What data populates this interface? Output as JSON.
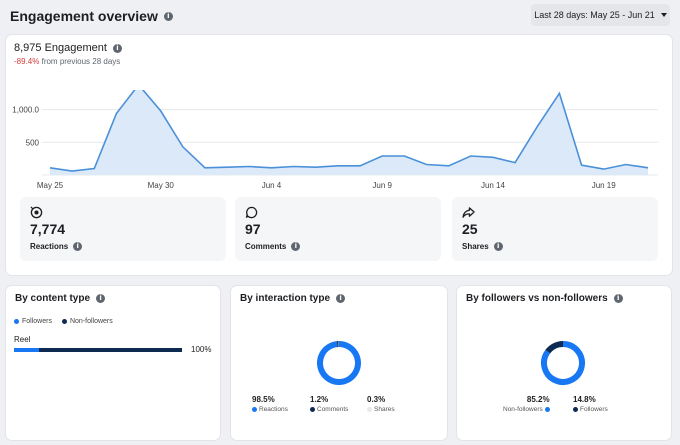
{
  "header": {
    "title": "Engagement overview",
    "date_range": "Last 28 days: May 25 - Jun 21"
  },
  "overview": {
    "total": "8,975 Engagement",
    "change_pct": "-89.4%",
    "change_text": "from previous 28 days"
  },
  "chart_data": {
    "type": "area",
    "x_labels": [
      "May 25",
      "May 30",
      "Jun 4",
      "Jun 9",
      "Jun 14",
      "Jun 19"
    ],
    "y_ticks": [
      "500",
      "1,000.0"
    ],
    "ylim": [
      0,
      1300
    ],
    "values": [
      110,
      60,
      100,
      940,
      1380,
      980,
      430,
      110,
      120,
      130,
      110,
      130,
      120,
      140,
      140,
      290,
      290,
      160,
      140,
      290,
      270,
      190,
      740,
      1250,
      150,
      90,
      160,
      110
    ],
    "color": "#4a90d9"
  },
  "metrics": [
    {
      "icon": "reactions-icon",
      "value": "7,774",
      "label": "Reactions"
    },
    {
      "icon": "comments-icon",
      "value": "97",
      "label": "Comments"
    },
    {
      "icon": "shares-icon",
      "value": "25",
      "label": "Shares"
    }
  ],
  "content_type": {
    "title": "By content type",
    "legend": [
      "Followers",
      "Non-followers"
    ],
    "row_label": "Reel",
    "followers_fraction": 0.15,
    "pct": "100%"
  },
  "interaction_type": {
    "title": "By interaction type",
    "stats": [
      {
        "value": "98.5%",
        "label": "Reactions",
        "fraction": 0.985,
        "color": "#1877f2"
      },
      {
        "value": "1.2%",
        "label": "Comments",
        "fraction": 0.012,
        "color": "#0d2a52"
      },
      {
        "value": "0.3%",
        "label": "Shares",
        "fraction": 0.003,
        "color": "#e8e8e8"
      }
    ]
  },
  "followers": {
    "title": "By followers vs non-followers",
    "stats": [
      {
        "value": "85.2%",
        "label": "Non-followers",
        "fraction": 0.852,
        "color": "#1877f2"
      },
      {
        "value": "14.8%",
        "label": "Followers",
        "fraction": 0.148,
        "color": "#0d2a52"
      }
    ]
  },
  "colors": {
    "accent": "#1877f2",
    "dark": "#0d2a52",
    "negative": "#d23b3b"
  }
}
